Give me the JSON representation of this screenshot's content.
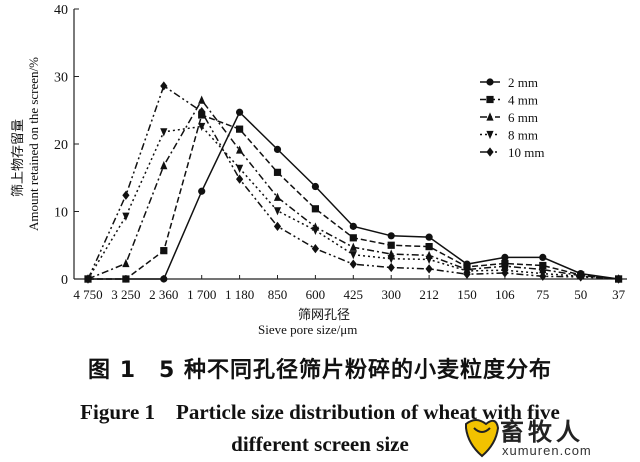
{
  "chart_data": {
    "type": "line",
    "categories": [
      "4 750",
      "3 250",
      "2 360",
      "1 700",
      "1 180",
      "850",
      "600",
      "425",
      "300",
      "212",
      "150",
      "106",
      "75",
      "50",
      "37"
    ],
    "ylim": [
      0,
      40
    ],
    "yticks": [
      0,
      10,
      20,
      30,
      40
    ],
    "ylabel_cn": "筛上物存留量",
    "ylabel_en": "Amount retained on the screen/%",
    "xlabel_cn": "筛网孔径",
    "xlabel_en": "Sieve pore size/μm",
    "legend_position": "top-right",
    "series": [
      {
        "name": "2 mm",
        "marker": "circle",
        "dash": "solid",
        "values": [
          0,
          0,
          0,
          13,
          24.7,
          19.2,
          13.7,
          7.8,
          6.4,
          6.2,
          2.2,
          3.2,
          3.2,
          0.8,
          0
        ]
      },
      {
        "name": "4 mm",
        "marker": "square",
        "dash": "dash",
        "values": [
          0,
          0,
          4.2,
          24.3,
          22.2,
          15.8,
          10.4,
          6.1,
          5.0,
          4.8,
          1.8,
          2.3,
          2.0,
          0.6,
          0
        ]
      },
      {
        "name": "6 mm",
        "marker": "triangle",
        "dash": "dashdot",
        "values": [
          0,
          2.3,
          16.8,
          26.5,
          19.1,
          12.1,
          7.7,
          4.7,
          3.7,
          3.5,
          1.4,
          1.9,
          1.4,
          0.5,
          0
        ]
      },
      {
        "name": "8 mm",
        "marker": "triangle-down",
        "dash": "dot",
        "values": [
          0,
          9.3,
          21.8,
          22.6,
          16.4,
          10.1,
          7.2,
          3.6,
          3.0,
          2.9,
          1.2,
          1.3,
          0.8,
          0.4,
          0
        ]
      },
      {
        "name": "10 mm",
        "marker": "diamond",
        "dash": "dashdotdot",
        "values": [
          0,
          12.4,
          28.6,
          24.8,
          14.8,
          7.8,
          4.5,
          2.2,
          1.7,
          1.5,
          0.7,
          0.9,
          0.4,
          0.3,
          0
        ]
      }
    ]
  },
  "caption": {
    "cn": "图 1　5 种不同孔径筛片粉碎的小麦粒度分布",
    "en_line1": "Figure 1　Particle size distribution of wheat with five",
    "en_line2": "different screen size"
  },
  "watermark": {
    "name": "畜牧人",
    "url": "xumuren.com"
  }
}
